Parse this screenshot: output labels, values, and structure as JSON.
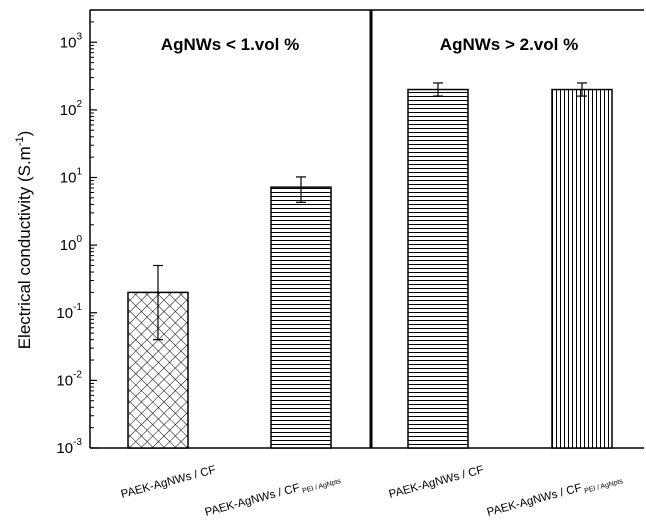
{
  "chart_data": {
    "type": "bar",
    "yscale": "log",
    "ylim": [
      0.001,
      3000
    ],
    "ylabel": "Electrical conductivity (S.m-1)",
    "ylabel_main": "Electrical conductivity (S.m",
    "ylabel_sup": "-1",
    "ylabel_close": ")",
    "y_ticks": [
      {
        "value": 0.001,
        "base": "10",
        "exp": "-3"
      },
      {
        "value": 0.01,
        "base": "10",
        "exp": "-2"
      },
      {
        "value": 0.1,
        "base": "10",
        "exp": "-1"
      },
      {
        "value": 1,
        "base": "10",
        "exp": "0"
      },
      {
        "value": 10,
        "base": "10",
        "exp": "1"
      },
      {
        "value": 100,
        "base": "10",
        "exp": "2"
      },
      {
        "value": 1000,
        "base": "10",
        "exp": "3"
      }
    ],
    "panels": [
      {
        "title": "AgNWs < 1.vol %",
        "categories": [
          0,
          1
        ]
      },
      {
        "title": "AgNWs > 2.vol %",
        "categories": [
          2,
          3
        ]
      }
    ],
    "categories": [
      {
        "label": "PAEK-AgNWs / CF",
        "subscript": "",
        "value": 0.2,
        "err_low": 0.04,
        "err_high": 0.5,
        "pattern": "crosshatch"
      },
      {
        "label": "PAEK-AgNWs / CF",
        "subscript": "PEI / AgNpts",
        "value": 7.2,
        "err_low": 4.3,
        "err_high": 10.2,
        "pattern": "horizontal"
      },
      {
        "label": "PAEK-AgNWs / CF",
        "subscript": "",
        "value": 200,
        "err_low": 160,
        "err_high": 250,
        "pattern": "horizontal"
      },
      {
        "label": "PAEK-AgNWs / CF",
        "subscript": "PEI / AgNpts",
        "value": 200,
        "err_low": 160,
        "err_high": 250,
        "pattern": "vertical"
      }
    ],
    "colors": {
      "bar_fill": "#ffffff",
      "stroke": "#000000",
      "background": "#ffffff"
    }
  }
}
